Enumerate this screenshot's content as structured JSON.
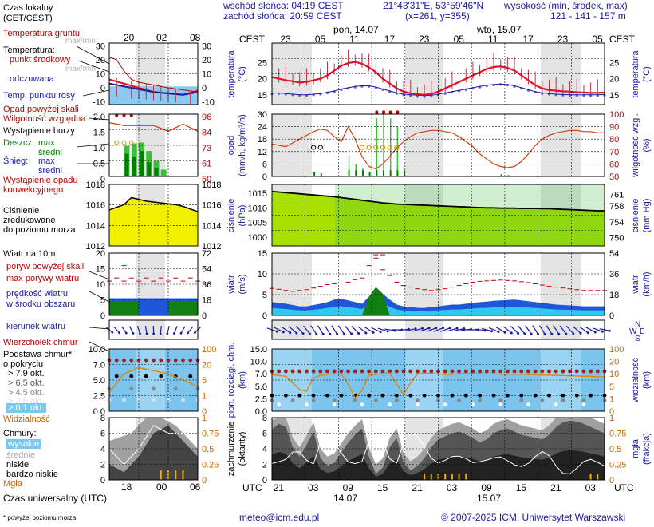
{
  "header": {
    "sunrise": "wschód słońca: 04:19 CEST",
    "sunset": "zachód słońca: 20:59 CEST",
    "coords": "21°43'31\"E, 53°59'46\"N",
    "grid": "(x=261,  y=355)",
    "height_title": "wysokość (min, środek, max)",
    "height_values": "121 - 141 - 157 m"
  },
  "legend": {
    "local_time": "Czas lokalny",
    "local_time_sub": "(CET/CEST)",
    "ground_temp": "Temperatura gruntu",
    "ground_temp_sub": "max/min",
    "temperature": "Temperatura:",
    "mid_point": "punkt środkowy",
    "max_min": "max/min",
    "felt": "odczuwana",
    "dew_point": "Temp. punktu rosy",
    "precip_over": "Opad powyżej skali",
    "humidity": "Wilgotność względna",
    "storm": "Wystąpienie burzy",
    "rain": "Deszcz:",
    "max": "max",
    "avg": "średni",
    "snow": "Śnieg:",
    "conv": "Wystąpienie opadu",
    "conv2": "konwekcyjnego",
    "pressure1": "Ciśnienie",
    "pressure2": "zredukowane",
    "pressure3": "do poziomu morza",
    "wind10": "Wiatr na 10m:",
    "gust_over": "poryw powyżej skali",
    "gust_max": "max porywy wiatru",
    "wind_speed": "prędkość wiatru",
    "wind_speed2": "w środku obszaru",
    "wind_dir": "kierunek wiatru",
    "cloud_top": "Wierzchołek chmur",
    "cloud_base": "Podstawa chmur*",
    "cloud_base2": "o pokryciu",
    "okt79": "> 7.9 okt.",
    "okt65": "> 6.5 okt.",
    "okt45": "> 4.5 okt.",
    "okt25": "> 2.5 okt.",
    "okt01": "> 0.1 okt.",
    "visibility": "Widzialność",
    "clouds": "Chmury:",
    "high": "wysokie",
    "mid": "średnie",
    "low": "niskie",
    "very_low": "bardzo niskie",
    "fog": "Mgła",
    "utc_time": "Czas uniwersalny (UTC)",
    "footnote": "* powyżej poziomu morza"
  },
  "axis_titles": {
    "temp_l": "temperatura",
    "temp_l2": "(°C)",
    "temp_r": "temperatura",
    "temp_r2": "(°C)",
    "precip_l": "opad",
    "precip_l2": "(mm/h, kg/m²/h)",
    "precip_r": "wilgotność wzgl.",
    "precip_r2": "(%)",
    "press_l": "ciśnienie",
    "press_l2": "(hPa)",
    "press_r": "ciśnienie",
    "press_r2": "(mm Hg)",
    "wind_l": "wiatr",
    "wind_l2": "(m/s)",
    "wind_r": "wiatr",
    "wind_r2": "(km/h)",
    "cloud_l": "pion. rozciągł. chm.",
    "cloud_l2": "(km)",
    "cloud_r": "widzialność",
    "cloud_r2": "(km)",
    "cov_l": "zachmurzenie",
    "cov_l2": "(oktanty)",
    "cov_r": "mgła",
    "cov_r2": "(frakcja)"
  },
  "top_axis": {
    "tz": "CEST",
    "day1": "pon, 14.07",
    "day2": "wto, 15.07",
    "hours": [
      "23",
      "05",
      "11",
      "17",
      "23",
      "05",
      "11",
      "17",
      "23",
      "05"
    ]
  },
  "bottom_axis": {
    "tz": "UTC",
    "hours": [
      "21",
      "03",
      "09",
      "15",
      "21",
      "03",
      "09",
      "15",
      "21",
      "03"
    ],
    "day1": "14.07",
    "day2": "15.07"
  },
  "legend_axis": {
    "top_hours": [
      "20",
      "02",
      "08"
    ],
    "bottom_hours": [
      "18",
      "00",
      "06"
    ]
  },
  "footer": {
    "email": "meteo@icm.edu.pl",
    "copyright": "© 2007-2025 ICM, Uniwersytet Warszawski"
  },
  "chart_data": [
    {
      "type": "line",
      "name": "temperature",
      "ylim": [
        12,
        31
      ],
      "yticks": [
        15,
        20,
        25
      ],
      "series": [
        {
          "name": "punkt środkowy",
          "color": "#e0102a",
          "values": [
            20.5,
            20,
            19.5,
            19.2,
            18.8,
            19,
            19.5,
            20,
            21,
            22.5,
            24,
            24.8,
            25.2,
            24.6,
            23.5,
            22,
            20,
            18.5,
            17,
            16,
            15.5,
            15.2,
            15,
            15.3,
            16,
            17,
            18,
            19,
            20,
            21,
            22,
            23,
            23.6,
            23.8,
            23.3,
            22.5,
            21,
            19.5,
            18,
            17,
            16.5,
            16.3,
            16.1,
            16,
            15.8,
            15.7,
            15.6,
            15.6,
            15.7
          ]
        },
        {
          "name": "odczuwana",
          "color": "#1a1aa0",
          "values": [
            15.5,
            15.6,
            15.4,
            15.2,
            15,
            15,
            15.2,
            15.4,
            15.8,
            16.2,
            16.8,
            17.2,
            17.6,
            17.8,
            17.8,
            17.4,
            16.8,
            16.2,
            15.6,
            15.2,
            15,
            14.9,
            14.8,
            14.9,
            15.2,
            15.6,
            16,
            16.4,
            16.8,
            17.2,
            17.6,
            18,
            18.2,
            18.4,
            18.2,
            17.8,
            17.2,
            16.6,
            16,
            15.6,
            15.4,
            15.2,
            15.1,
            15,
            15,
            15,
            15,
            15,
            15.1
          ]
        }
      ]
    },
    {
      "type": "bar",
      "name": "precipitation",
      "ylim": [
        0,
        30
      ],
      "yticks": [
        0,
        6,
        12,
        18,
        24,
        30
      ],
      "humidity_ylim": [
        50,
        100
      ],
      "humidity_yticks": [
        50,
        60,
        70,
        80,
        90,
        100
      ],
      "humidity": [
        76,
        75,
        74,
        77,
        80,
        83,
        86,
        88,
        87,
        82,
        78,
        90,
        80,
        66,
        58,
        56,
        60,
        66,
        73,
        78,
        82,
        85,
        86,
        87,
        87,
        86,
        85,
        82,
        78,
        74,
        68,
        64,
        60,
        58,
        57,
        58,
        62,
        68,
        75,
        80,
        83,
        85,
        86,
        87,
        87,
        86,
        86,
        85,
        85
      ]
    },
    {
      "type": "area",
      "name": "pressure",
      "ylim": [
        997,
        1018
      ],
      "yticks": [
        1000,
        1005,
        1010,
        1015
      ],
      "right_ticks_mmhg": [
        750,
        754,
        758,
        761
      ],
      "values": [
        1015.6,
        1015.4,
        1015.2,
        1015,
        1014.8,
        1014.6,
        1014.4,
        1014.2,
        1014,
        1013.8,
        1013.5,
        1013.2,
        1012.9,
        1012.6,
        1012.3,
        1012,
        1011.7,
        1011.5,
        1011.3,
        1011.2,
        1011.1,
        1011,
        1010.9,
        1010.8,
        1010.7,
        1010.6,
        1010.5,
        1010.4,
        1010.3,
        1010.2,
        1010.1,
        1010,
        1010,
        1009.9,
        1009.9,
        1009.9,
        1009.8,
        1009.8,
        1009.8,
        1009.7,
        1009.7,
        1009.6,
        1009.5,
        1009.4,
        1009.3,
        1009.2,
        1009.1,
        1009,
        1009
      ]
    },
    {
      "type": "area",
      "name": "wind",
      "ylim": [
        0,
        15
      ],
      "yticks": [
        0,
        5,
        10,
        15
      ],
      "right_ticks_kmh": [
        0,
        18,
        36,
        54
      ],
      "speed": [
        3.2,
        3,
        2.8,
        2.5,
        2.2,
        2.2,
        2.5,
        2.8,
        3.2,
        3.8,
        4,
        3.6,
        3.2,
        2.8,
        4.5,
        6.8,
        5.2,
        3.8,
        2.6,
        2.2,
        2,
        1.8,
        1.8,
        2,
        2.2,
        2.4,
        2.6,
        2.6,
        2.8,
        3,
        3.2,
        3.3,
        3.5,
        3.6,
        3.7,
        3.8,
        3.6,
        3.4,
        3.2,
        3,
        2.8,
        2.6,
        2.5,
        2.4,
        2.3,
        2.2,
        2.2,
        2.2,
        2.2
      ],
      "gust_max": [
        6.5,
        6.3,
        6,
        5.8,
        6,
        6.2,
        6.6,
        7,
        7.4,
        7.6,
        7.8,
        8,
        8.6,
        9,
        12,
        13.8,
        11,
        9.6,
        8,
        7.2,
        6.8,
        6.4,
        6.2,
        6,
        6.2,
        6.4,
        6.8,
        7.2,
        7.6,
        8,
        8.2,
        8.3,
        8.4,
        8.5,
        8.4,
        8.3,
        8.1,
        7.9,
        7.6,
        7.3,
        7,
        6.8,
        6.6,
        6.4,
        6.2,
        6,
        6,
        6,
        6
      ]
    },
    {
      "type": "line",
      "name": "cloud_extent_visibility",
      "ylim": [
        0,
        15
      ],
      "yticks": [
        0,
        2.5,
        5,
        7,
        10,
        15
      ],
      "visibility_ticks": [
        0,
        1,
        5,
        10,
        20,
        100
      ],
      "visibility": [
        8.8,
        8.6,
        8.4,
        6.8,
        5.2,
        4.8,
        8,
        8.6,
        8.9,
        9,
        9,
        6.5,
        3.2,
        5,
        8.7,
        8.9,
        9.1,
        9.2,
        6.5,
        4,
        6.8,
        9,
        9.2,
        9.1,
        9,
        8.8,
        8.9,
        9,
        9.1,
        9.1,
        9,
        9,
        9,
        8.9,
        8.9,
        8.9,
        8.9,
        8.8,
        8.8,
        8.7,
        8.7,
        8.6,
        8.6,
        8.5,
        8.5,
        8.4,
        8.4,
        8.3,
        8.3
      ]
    },
    {
      "type": "area",
      "name": "cloud_cover",
      "ylim": [
        0,
        8
      ],
      "yticks": [
        0,
        2,
        4,
        6,
        8
      ],
      "fog_ticks": [
        0,
        0.25,
        0.5,
        0.75,
        1
      ],
      "low": [
        6.5,
        7.2,
        6.8,
        4.2,
        3,
        4.5,
        6.2,
        2.8,
        1.8,
        2.2,
        3.5,
        4.8,
        5.8,
        6.6,
        3,
        0.8,
        1.6,
        4.2,
        5.4,
        2.2,
        1.2,
        1.8,
        2.8,
        4.2,
        5.2,
        5.6,
        6,
        6.2,
        5.8,
        5.4,
        4.8,
        5.2,
        6,
        6.4,
        6.6,
        6.2,
        5.8,
        5.6,
        5.4,
        5.2,
        5.8,
        6.8,
        7.4,
        7.6,
        7.5,
        7.2,
        6.8,
        6.4,
        6
      ]
    }
  ]
}
